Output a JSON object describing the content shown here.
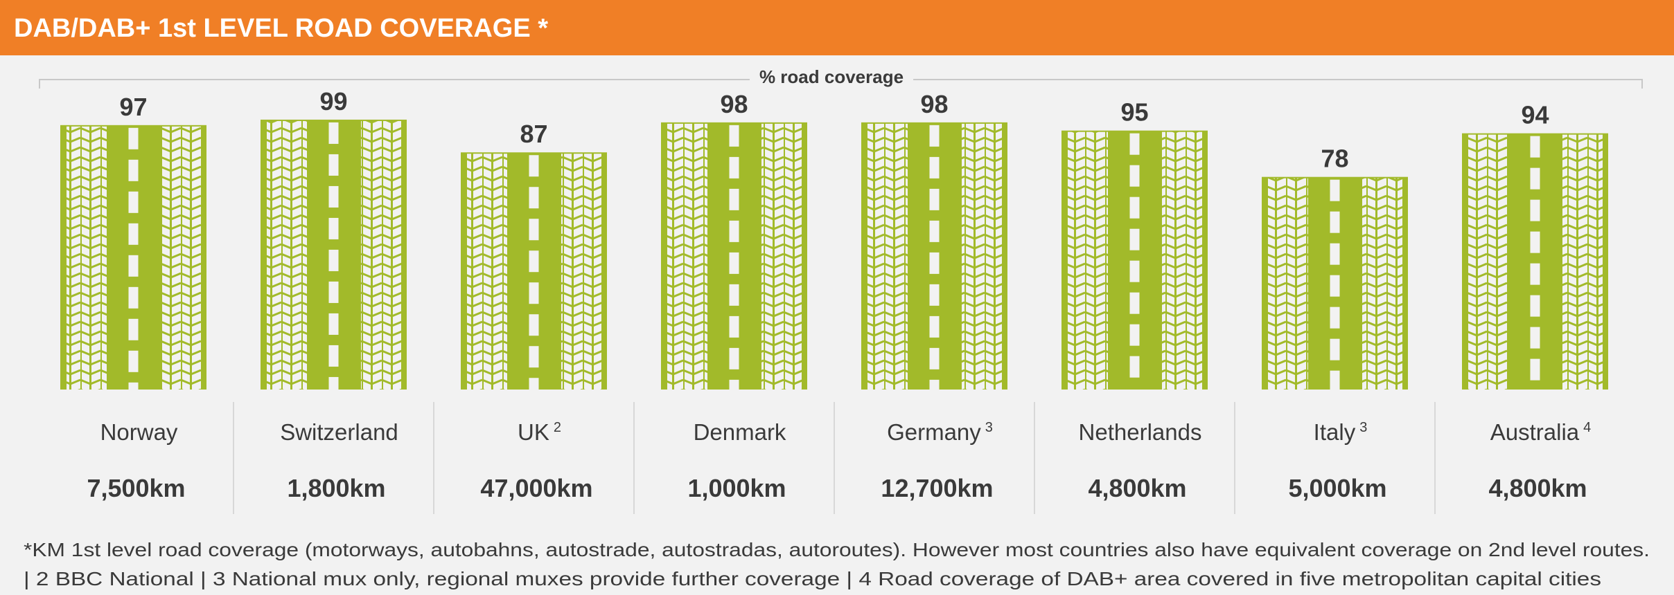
{
  "header": {
    "title": "DAB/DAB+ 1st LEVEL ROAD COVERAGE *"
  },
  "colors": {
    "header": "#F07F26",
    "bar": "#A2BA2A",
    "background": "#F2F2F2",
    "text": "#3A3A3A"
  },
  "chart_data": {
    "type": "bar",
    "title": "DAB/DAB+ 1st LEVEL ROAD COVERAGE *",
    "ylabel": "% road coverage",
    "ylim": [
      0,
      100
    ],
    "categories": [
      "Norway",
      "Switzerland",
      "UK",
      "Denmark",
      "Germany",
      "Netherlands",
      "Italy",
      "Australia"
    ],
    "superscripts": [
      "",
      "",
      "2",
      "",
      "3",
      "",
      "3",
      "4"
    ],
    "values": [
      97,
      99,
      87,
      98,
      98,
      95,
      78,
      94
    ],
    "value_labels": [
      "97",
      "99",
      "87",
      "98",
      "98",
      "95",
      "78",
      "94"
    ],
    "road_km": [
      "7,500km",
      "1,800km",
      "47,000km",
      "1,000km",
      "12,700km",
      "4,800km",
      "5,000km",
      "4,800km"
    ]
  },
  "footnotes": {
    "line1": "*KM 1st level road coverage (motorways, autobahns, autostrade, autostradas, autoroutes). However most countries also have equivalent coverage on 2nd level routes.",
    "line2": "|  2 BBC National    |   3 National mux only, regional muxes provide further coverage  |  4 Road coverage of DAB+ area covered in five metropolitan capital cities"
  }
}
